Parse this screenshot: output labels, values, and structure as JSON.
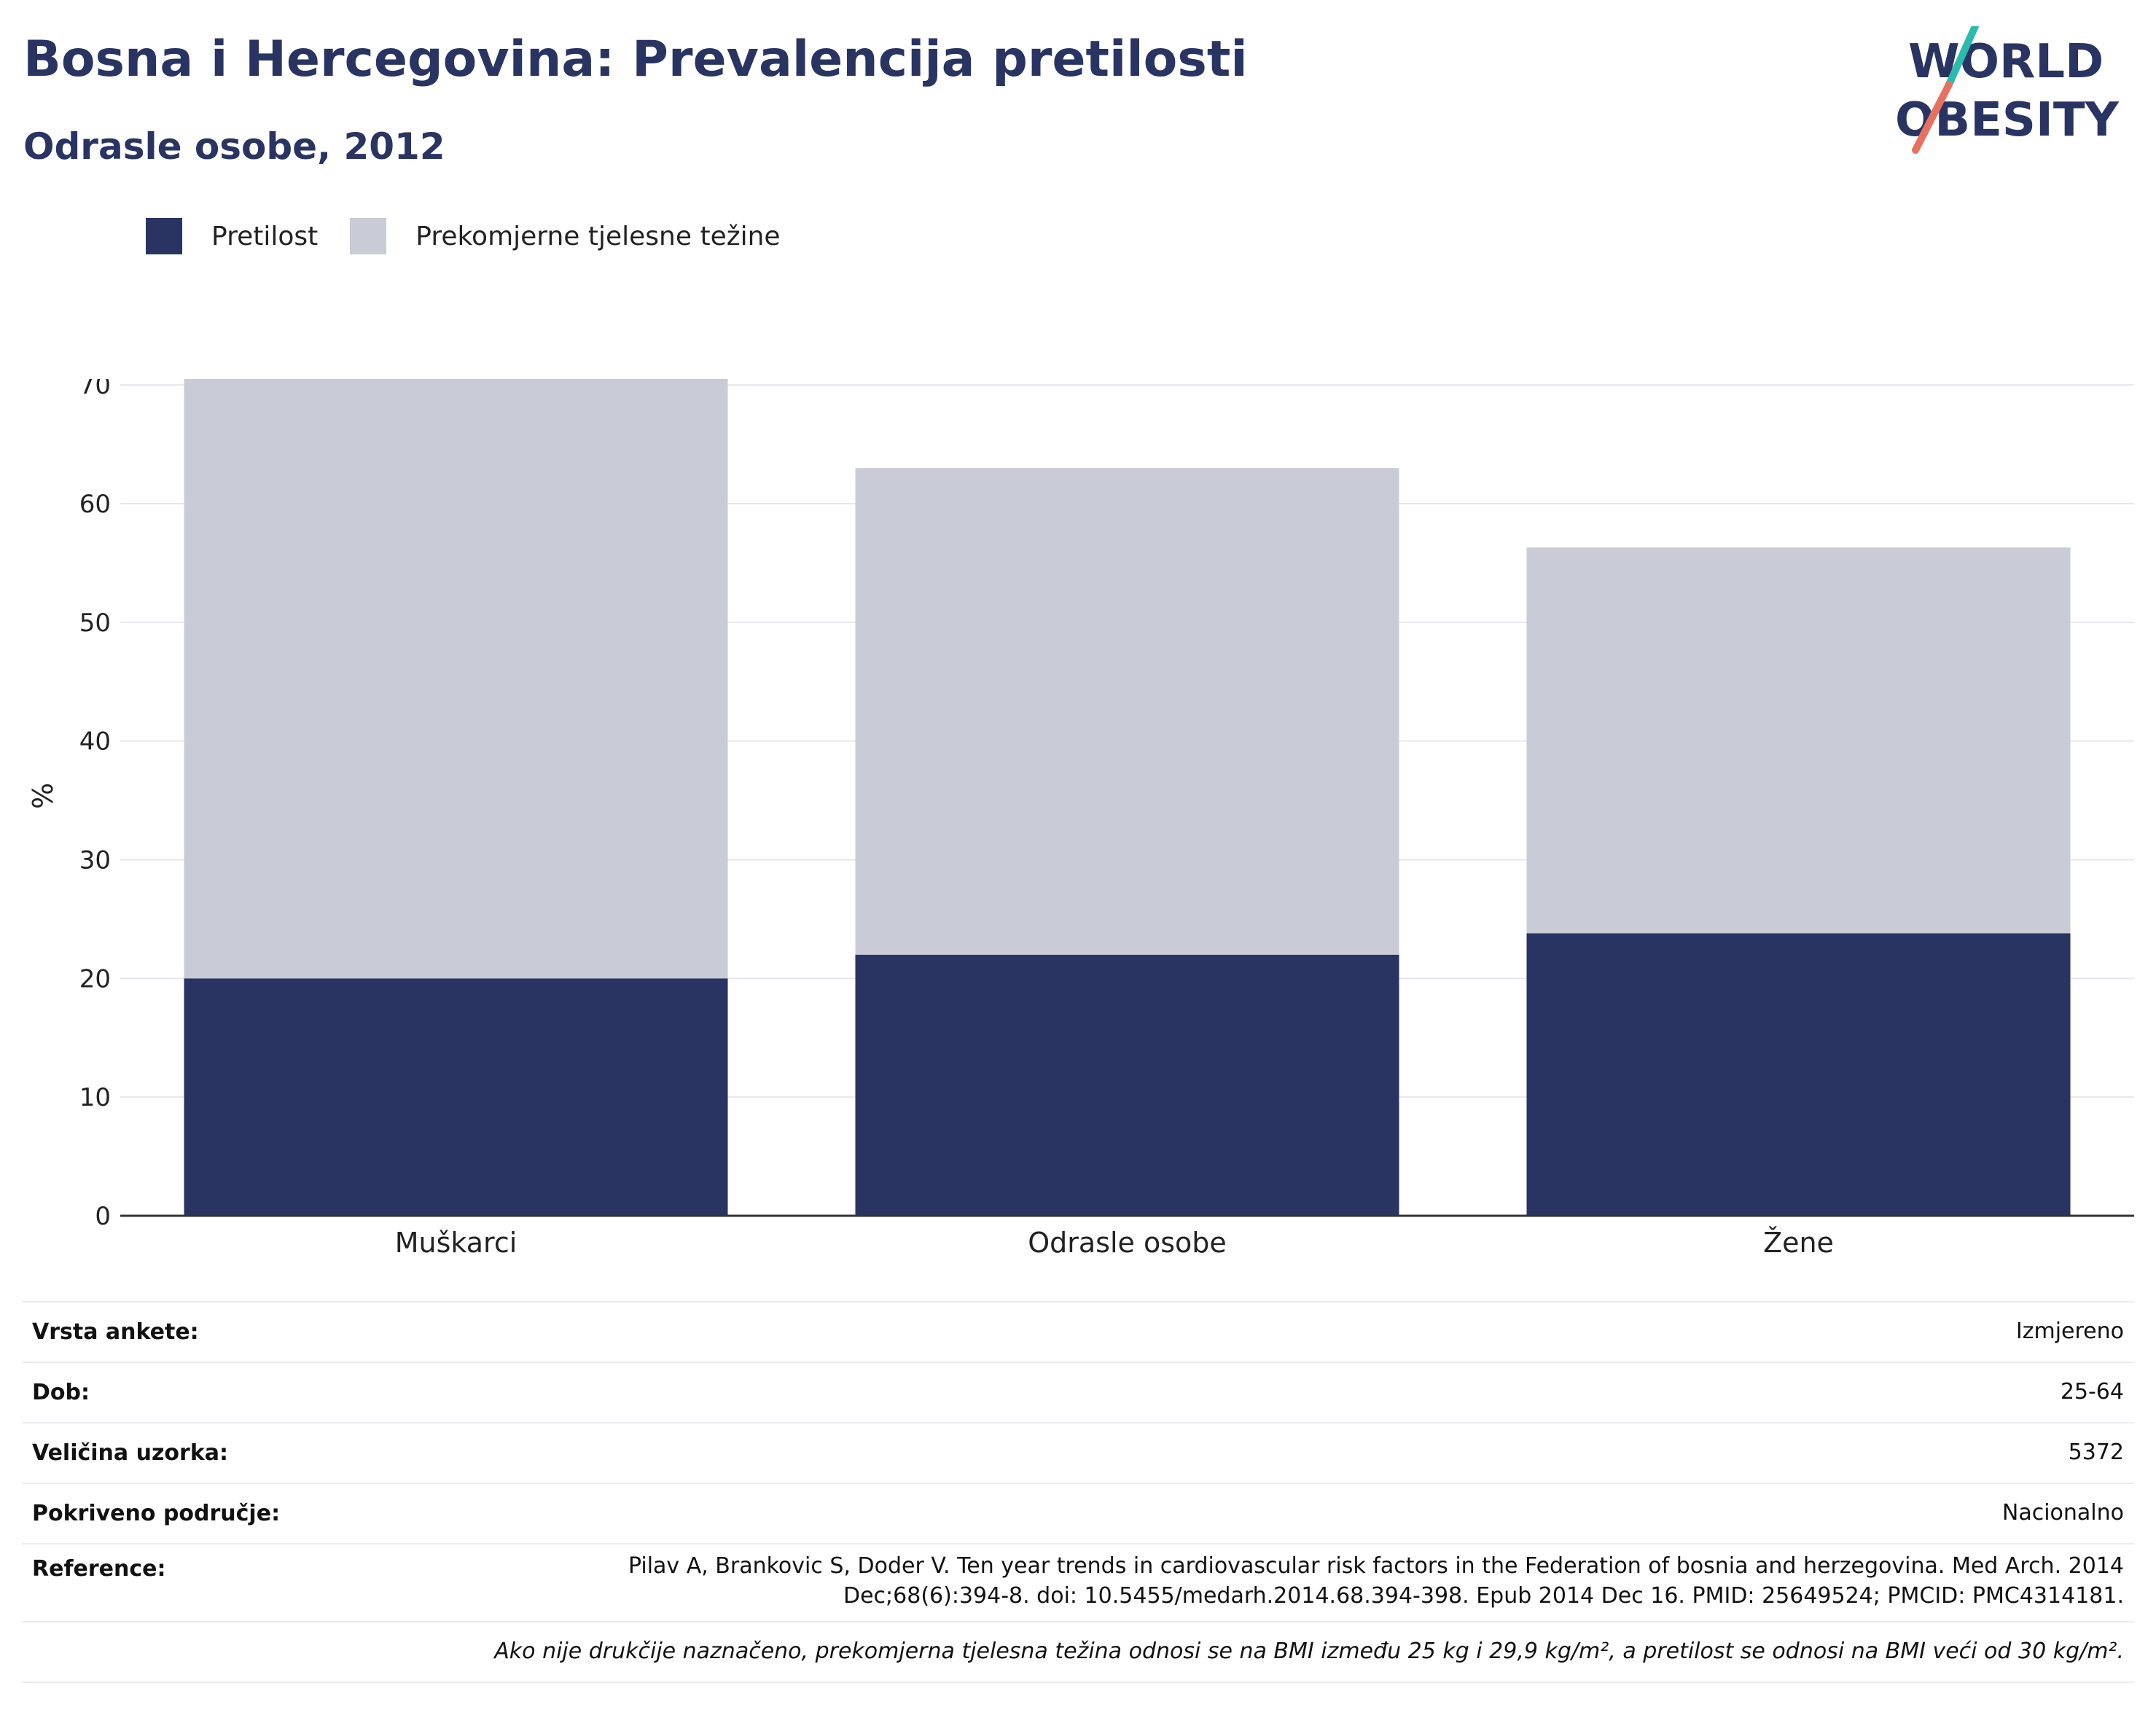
{
  "header": {
    "title": "Bosna i Hercegovina: Prevalencija pretilosti",
    "subtitle": "Odrasle osobe, 2012"
  },
  "logo": {
    "line1": "WORLD",
    "line2": "OBESITY",
    "colors": {
      "text": "#293462",
      "slash_top": "#2bbbad",
      "slash_bottom": "#e8705f"
    }
  },
  "colors": {
    "obesity": "#293462",
    "overweight": "#c9cbd7",
    "grid": "#e6e6ee",
    "axis": "#333333"
  },
  "chart_data": {
    "type": "bar",
    "stacked": true,
    "categories": [
      "Muškarci",
      "Odrasle osobe",
      "Žene"
    ],
    "series": [
      {
        "name": "Pretilost",
        "values": [
          20.0,
          22.0,
          23.8
        ],
        "color": "#293462"
      },
      {
        "name": "Prekomjerne tjelesne težine",
        "values": [
          50.5,
          41.0,
          32.5
        ],
        "color": "#c9cbd7"
      }
    ],
    "ylabel": "%",
    "ylim": [
      0,
      70.5
    ],
    "yticks": [
      0,
      10,
      20,
      30,
      40,
      50,
      60,
      70
    ],
    "grid": true,
    "legend_position": "top-left"
  },
  "info": {
    "rows": [
      {
        "key": "Vrsta ankete:",
        "value": "Izmjereno"
      },
      {
        "key": "Dob:",
        "value": "25-64"
      },
      {
        "key": "Veličina uzorka:",
        "value": "5372"
      },
      {
        "key": "Pokriveno područje:",
        "value": "Nacionalno"
      }
    ],
    "reference": {
      "key": "Reference:",
      "line1": "Pilav A, Brankovic S, Doder V. Ten year trends in cardiovascular risk factors in the Federation of bosnia and herzegovina. Med Arch. 2014",
      "line2": "Dec;68(6):394-8. doi: 10.5455/medarh.2014.68.394-398. Epub 2014 Dec 16. PMID: 25649524; PMCID: PMC4314181."
    },
    "note": "Ako nije drukčije naznačeno, prekomjerna tjelesna težina odnosi se na BMI između 25 kg i 29,9 kg/m², a pretilost se odnosi na BMI veći od 30 kg/m²."
  }
}
